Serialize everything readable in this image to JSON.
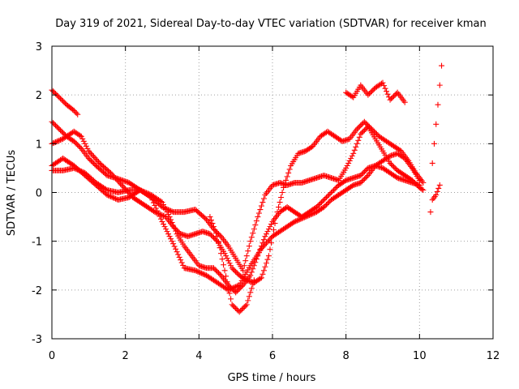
{
  "chart_data": {
    "type": "scatter",
    "title": "Day 319 of 2021, Sidereal Day-to-day VTEC variation (SDTVAR) for receiver kman",
    "xlabel": "GPS time / hours",
    "ylabel": "SDTVAR / TECUs",
    "xlim": [
      0,
      12
    ],
    "ylim": [
      -3,
      3
    ],
    "xticks": [
      0,
      2,
      4,
      6,
      8,
      10,
      12
    ],
    "yticks": [
      -3,
      -2,
      -1,
      0,
      1,
      2,
      3
    ],
    "grid": true,
    "marker": "+",
    "color": "#ff0000",
    "series": [
      {
        "x": [
          0.0,
          0.2,
          0.4,
          0.6,
          0.7
        ],
        "y": [
          2.1,
          1.95,
          1.8,
          1.68,
          1.6
        ]
      },
      {
        "x": [
          0.0,
          0.2,
          0.4,
          0.6,
          0.8,
          1.0,
          1.2,
          1.5,
          1.8,
          2.1,
          2.4,
          2.7,
          3.0,
          3.3,
          3.6,
          3.9,
          4.2,
          4.4,
          4.6,
          4.8,
          5.0,
          5.2,
          5.4,
          5.6,
          5.8,
          6.0,
          6.2,
          6.4,
          6.6,
          6.8,
          7.0,
          7.2,
          7.4,
          7.6,
          7.8,
          8.0,
          8.2,
          8.4,
          8.6,
          8.8,
          9.0,
          9.2,
          9.4,
          9.6,
          9.8,
          10.0,
          10.1
        ],
        "y": [
          1.45,
          1.3,
          1.15,
          1.05,
          0.9,
          0.7,
          0.55,
          0.35,
          0.28,
          0.2,
          0.05,
          -0.1,
          -0.3,
          -0.4,
          -0.4,
          -0.35,
          -0.55,
          -0.75,
          -0.9,
          -1.1,
          -1.35,
          -1.6,
          -1.0,
          -0.5,
          -0.05,
          0.15,
          0.2,
          0.15,
          0.2,
          0.2,
          0.25,
          0.3,
          0.35,
          0.3,
          0.25,
          0.5,
          0.8,
          1.2,
          1.35,
          1.1,
          0.85,
          0.6,
          0.45,
          0.35,
          0.25,
          0.1,
          0.05
        ]
      },
      {
        "x": [
          0.0,
          0.3,
          0.6,
          0.8,
          1.0,
          1.3,
          1.6,
          1.9,
          2.2,
          2.5,
          2.8,
          3.1,
          3.3,
          3.5,
          3.7,
          3.9,
          4.1,
          4.3,
          4.5,
          4.7,
          4.9,
          5.1,
          5.3,
          5.5,
          5.7,
          5.9,
          6.1,
          6.3,
          6.5,
          6.7,
          6.9,
          7.1,
          7.3,
          7.5,
          7.7,
          7.9,
          8.1,
          8.3,
          8.5,
          8.7,
          8.9,
          9.1,
          9.3,
          9.5,
          9.7,
          9.9,
          10.1
        ],
        "y": [
          1.0,
          1.1,
          1.25,
          1.15,
          0.85,
          0.6,
          0.4,
          0.15,
          -0.1,
          -0.25,
          -0.4,
          -0.5,
          -0.7,
          -0.85,
          -0.9,
          -0.85,
          -0.8,
          -0.85,
          -1.0,
          -1.25,
          -1.55,
          -1.7,
          -1.8,
          -1.85,
          -1.75,
          -1.3,
          -0.5,
          0.1,
          0.55,
          0.8,
          0.85,
          0.95,
          1.15,
          1.25,
          1.15,
          1.05,
          1.1,
          1.3,
          1.45,
          1.3,
          1.15,
          1.05,
          0.95,
          0.85,
          0.65,
          0.4,
          0.2
        ]
      },
      {
        "x": [
          0.0,
          0.3,
          0.6,
          0.9,
          1.2,
          1.5,
          1.8,
          2.1,
          2.4,
          2.7,
          3.0,
          3.2,
          3.4,
          3.6,
          3.8,
          4.0,
          4.2,
          4.4,
          4.6,
          4.8,
          5.0,
          5.2,
          5.4,
          5.6,
          5.8,
          6.0,
          6.2,
          6.4,
          6.6,
          6.8,
          7.0,
          7.2,
          7.4,
          7.6,
          7.8,
          8.0,
          8.2,
          8.4,
          8.6,
          8.8,
          9.0,
          9.2,
          9.4,
          9.6,
          9.8,
          10.0
        ],
        "y": [
          0.45,
          0.45,
          0.5,
          0.4,
          0.2,
          0.05,
          0.0,
          0.05,
          0.05,
          -0.05,
          -0.2,
          -0.5,
          -0.85,
          -1.1,
          -1.3,
          -1.5,
          -1.55,
          -1.55,
          -1.7,
          -1.9,
          -2.05,
          -1.9,
          -1.7,
          -1.3,
          -0.9,
          -0.6,
          -0.4,
          -0.3,
          -0.4,
          -0.5,
          -0.4,
          -0.3,
          -0.15,
          0.0,
          0.15,
          0.25,
          0.3,
          0.35,
          0.5,
          0.55,
          0.5,
          0.4,
          0.3,
          0.25,
          0.2,
          0.15
        ]
      },
      {
        "x": [
          0.0,
          0.3,
          0.6,
          0.9,
          1.2,
          1.5,
          1.8,
          2.1,
          2.4,
          2.7,
          3.0,
          3.3,
          3.6,
          3.9,
          4.2,
          4.5,
          4.8,
          5.1,
          5.4,
          5.7,
          6.0,
          6.3,
          6.6,
          6.9,
          7.2,
          7.4,
          7.6,
          7.8,
          8.0,
          8.2,
          8.4,
          8.6,
          8.8,
          9.0,
          9.2,
          9.4,
          9.6,
          9.8,
          10.0
        ],
        "y": [
          0.55,
          0.7,
          0.55,
          0.35,
          0.15,
          -0.05,
          -0.15,
          -0.1,
          0.05,
          -0.1,
          -0.6,
          -1.05,
          -1.55,
          -1.6,
          -1.7,
          -1.85,
          -2.0,
          -1.9,
          -1.5,
          -1.15,
          -0.9,
          -0.75,
          -0.6,
          -0.5,
          -0.4,
          -0.3,
          -0.15,
          -0.05,
          0.05,
          0.15,
          0.2,
          0.35,
          0.55,
          0.65,
          0.75,
          0.8,
          0.7,
          0.5,
          0.25
        ]
      },
      {
        "x": [
          4.3,
          4.5,
          4.7,
          4.9,
          5.1,
          5.3,
          5.5
        ],
        "y": [
          -0.5,
          -0.9,
          -1.6,
          -2.3,
          -2.45,
          -2.3,
          -1.8
        ]
      },
      {
        "x": [
          8.0,
          8.2,
          8.4,
          8.6,
          8.8,
          9.0,
          9.2,
          9.4,
          9.6
        ],
        "y": [
          2.05,
          1.95,
          2.2,
          2.0,
          2.15,
          2.25,
          1.9,
          2.05,
          1.85
        ]
      },
      {
        "x": [
          10.3,
          10.35,
          10.4,
          10.45,
          10.5,
          10.55,
          10.6
        ],
        "y": [
          -0.4,
          0.6,
          1.0,
          1.4,
          1.8,
          2.2,
          2.6
        ]
      },
      {
        "x": [
          10.35,
          10.45,
          10.55
        ],
        "y": [
          -0.15,
          -0.05,
          0.15
        ]
      }
    ]
  }
}
